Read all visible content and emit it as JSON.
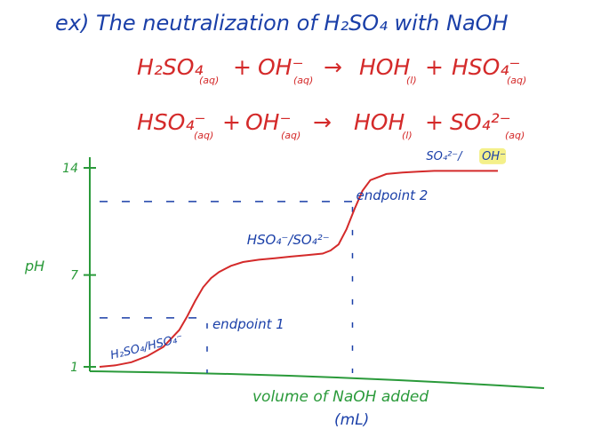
{
  "title": "ex) The neutralization of H₂SO₄ with NaOH",
  "reactions": [
    {
      "reactant1": "H₂SO₄",
      "reactant1_state": "(aq)",
      "plus1": "+",
      "reactant2": "OH⁻",
      "reactant2_state": "(aq)",
      "arrow": "→",
      "product1": "HOH",
      "product1_state": "(l)",
      "plus2": "+",
      "product2": "HSO₄⁻",
      "product2_state": "(aq)"
    },
    {
      "reactant1": "HSO₄⁻",
      "reactant1_state": "(aq)",
      "plus1": "+",
      "reactant2": "OH⁻",
      "reactant2_state": "(aq)",
      "arrow": "→",
      "product1": "HOH",
      "product1_state": "(l)",
      "plus2": "+",
      "product2": "SO₄²⁻",
      "product2_state": "(aq)"
    }
  ],
  "chart_data": {
    "type": "line",
    "xlabel": "volume of NaOH added",
    "xlabel_unit": "(mL)",
    "ylabel": "pH",
    "y_ticks": [
      "1",
      "7",
      "14"
    ],
    "ylim": [
      0,
      15
    ],
    "x": [
      0.0,
      0.04,
      0.08,
      0.12,
      0.16,
      0.2,
      0.22,
      0.24,
      0.26,
      0.28,
      0.3,
      0.33,
      0.36,
      0.4,
      0.44,
      0.48,
      0.52,
      0.56,
      0.58,
      0.6,
      0.62,
      0.64,
      0.66,
      0.68,
      0.72,
      0.76,
      0.8,
      0.84,
      0.88,
      0.92,
      0.96,
      1.0
    ],
    "series": [
      {
        "values": [
          1.0,
          1.1,
          1.3,
          1.7,
          2.3,
          3.4,
          4.3,
          5.3,
          6.2,
          6.8,
          7.2,
          7.6,
          7.85,
          8.0,
          8.1,
          8.2,
          8.3,
          8.4,
          8.6,
          9.0,
          10.0,
          11.3,
          12.5,
          13.2,
          13.6,
          13.7,
          13.75,
          13.8,
          13.8,
          13.8,
          13.8,
          13.8
        ]
      }
    ],
    "color": "#d42a2a",
    "axis_color": "#2a9a3a",
    "text_color": "#1a3fa8",
    "reference_lines": [
      {
        "orientation": "horizontal",
        "y": 4.2,
        "style": "dashed"
      },
      {
        "orientation": "horizontal",
        "y": 11.8,
        "style": "dashed"
      },
      {
        "orientation": "vertical",
        "x": 0.27,
        "style": "dashed"
      },
      {
        "orientation": "vertical",
        "x": 0.635,
        "style": "dashed"
      }
    ],
    "annotations": [
      {
        "text": "endpoint 1",
        "x": 0.27,
        "y": 4.2
      },
      {
        "text": "endpoint 2",
        "x": 0.635,
        "y": 11.8
      },
      {
        "text": "H₂SO₄/HSO₄⁻",
        "x": 0.03,
        "y": 1.5
      },
      {
        "text": "HSO₄⁻/SO₄²⁻",
        "x": 0.37,
        "y": 9.0
      },
      {
        "text": "SO₄²⁻/",
        "x": 0.82,
        "y": 14.3
      },
      {
        "text": "OH⁻",
        "x": 0.96,
        "y": 14.3,
        "highlight": "#f4f08a"
      }
    ]
  }
}
